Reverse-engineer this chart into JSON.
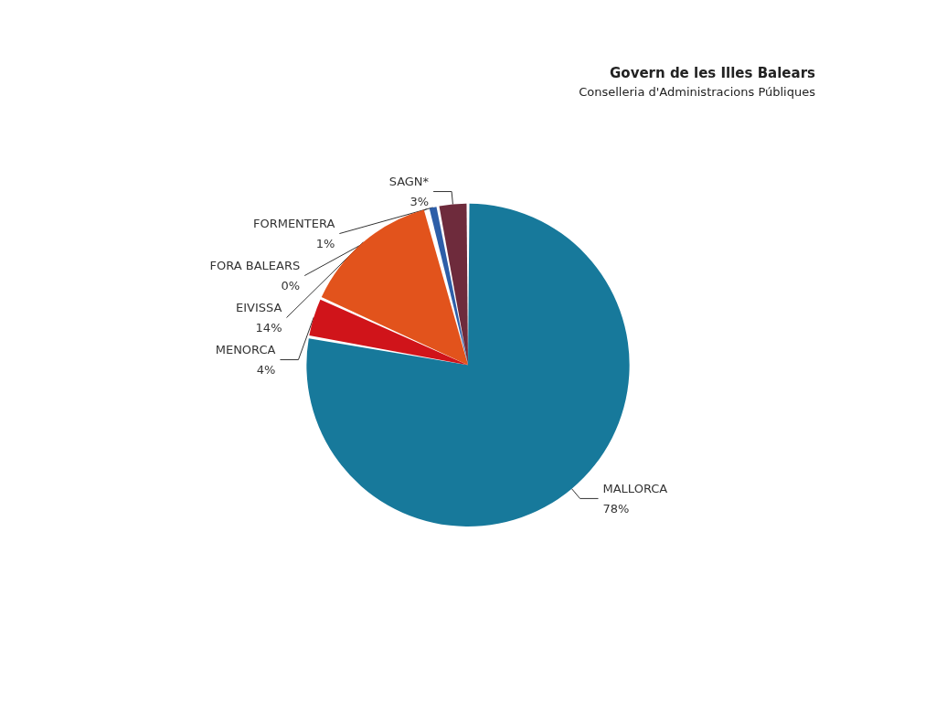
{
  "chart_data": {
    "type": "pie",
    "categories": [
      "MALLORCA",
      "MENORCA",
      "EIVISSA",
      "FORA BALEARS",
      "FORMENTERA",
      "SAGN*"
    ],
    "values": [
      78,
      4,
      14,
      0,
      1,
      3
    ],
    "value_labels": [
      "78%",
      "4%",
      "14%",
      "0%",
      "1%",
      "3%"
    ],
    "colors": [
      "#17799b",
      "#d0141a",
      "#e2531c",
      "#8c8c8c",
      "#2d5ea8",
      "#6e2b3c"
    ],
    "annotations": [
      "Govern de les Illes Balears",
      "Conselleria d'Administracions Públiques"
    ],
    "legend": false
  }
}
